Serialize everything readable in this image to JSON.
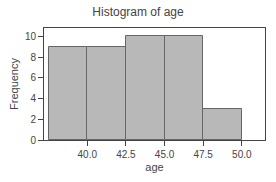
{
  "chart_data": {
    "type": "histogram",
    "title": "Histogram of age",
    "xlabel": "age",
    "ylabel": "Frequency",
    "bins": [
      37.5,
      40.0,
      42.5,
      45.0,
      47.5,
      50.0
    ],
    "values": [
      9,
      9,
      10,
      10,
      3
    ],
    "color": "#b8b8b8",
    "xlim": [
      37.2,
      51.5
    ],
    "xticks": [
      {
        "value": 40.0,
        "label": "40.0"
      },
      42.5,
      {
        "value": 45.0,
        "label": "45.0"
      },
      47.5,
      {
        "value": 50.0,
        "label": "50.0"
      }
    ],
    "ylim": [
      0,
      10.8
    ],
    "yticks": [
      0,
      2,
      4,
      6,
      8,
      10
    ],
    "grid": false
  }
}
